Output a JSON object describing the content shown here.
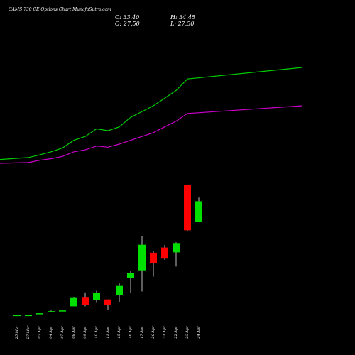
{
  "header": {
    "title": "CAMS 730  CE Options  Chart MunafaSutra.com",
    "close": "C: 33.40",
    "open": "O: 27.50",
    "high": "H: 34.45",
    "low": "L: 27.50"
  },
  "chart_data": {
    "type": "candlestick",
    "title": "CAMS 730  CE Options  Chart MunafaSutra.com",
    "x_tick_labels": [
      "25 Mar",
      "27 Mar",
      "02 Apr",
      "04 Apr",
      "07 Apr",
      "08 Apr",
      "09 Apr",
      "10 Apr",
      "11 Apr",
      "15 Apr",
      "16 Apr",
      "17 Apr",
      "20 Apr",
      "21 Apr",
      "22 Apr",
      "23 Apr",
      "24 Apr"
    ],
    "candles": [
      {
        "date": "25 Mar",
        "open": 0.5,
        "high": 0.5,
        "low": 0.5,
        "close": 0.5,
        "color": "green"
      },
      {
        "date": "27 Mar",
        "open": 0.5,
        "high": 0.5,
        "low": 0.5,
        "close": 0.5,
        "color": "green"
      },
      {
        "date": "02 Apr",
        "open": 0.8,
        "high": 1.0,
        "low": 0.8,
        "close": 1.0,
        "color": "green"
      },
      {
        "date": "04 Apr",
        "open": 1.3,
        "high": 1.8,
        "low": 1.3,
        "close": 1.6,
        "color": "green"
      },
      {
        "date": "07 Apr",
        "open": 1.6,
        "high": 1.8,
        "low": 1.6,
        "close": 1.8,
        "color": "green"
      },
      {
        "date": "08 Apr",
        "open": 3.0,
        "high": 5.7,
        "low": 3.0,
        "close": 5.4,
        "color": "green"
      },
      {
        "date": "09 Apr",
        "open": 5.5,
        "high": 7.0,
        "low": 3.0,
        "close": 3.4,
        "color": "red"
      },
      {
        "date": "10 Apr",
        "open": 4.8,
        "high": 7.5,
        "low": 4.0,
        "close": 6.8,
        "color": "green"
      },
      {
        "date": "11 Apr",
        "open": 5.0,
        "high": 5.0,
        "low": 2.0,
        "close": 3.3,
        "color": "red"
      },
      {
        "date": "15 Apr",
        "open": 6.2,
        "high": 9.8,
        "low": 4.3,
        "close": 8.9,
        "color": "green"
      },
      {
        "date": "16 Apr",
        "open": 11.3,
        "high": 13.2,
        "low": 6.8,
        "close": 12.6,
        "color": "green"
      },
      {
        "date": "17 Apr",
        "open": 13.4,
        "high": 23.3,
        "low": 7.3,
        "close": 20.8,
        "color": "green"
      },
      {
        "date": "20 Apr",
        "open": 18.5,
        "high": 19.0,
        "low": 11.6,
        "close": 15.5,
        "color": "red"
      },
      {
        "date": "21 Apr",
        "open": 20.0,
        "high": 20.7,
        "low": 16.5,
        "close": 16.8,
        "color": "red"
      },
      {
        "date": "22 Apr",
        "open": 18.6,
        "high": 21.5,
        "low": 14.5,
        "close": 21.3,
        "color": "green"
      },
      {
        "date": "23 Apr",
        "open": 38.0,
        "high": 38.0,
        "low": 24.8,
        "close": 25.0,
        "color": "red"
      },
      {
        "date": "24 Apr",
        "open": 27.5,
        "high": 34.45,
        "low": 27.5,
        "close": 33.4,
        "color": "green"
      }
    ],
    "series": [
      {
        "color": "#00cc00",
        "values": [
          0.5,
          0.55,
          0.62,
          0.7,
          0.8,
          1.0,
          1.1,
          1.3,
          1.25,
          1.35,
          1.6,
          1.75,
          1.9,
          2.1,
          2.3,
          2.6,
          2.9
        ]
      },
      {
        "color": "#cc00cc",
        "values": [
          0.4,
          0.42,
          0.48,
          0.52,
          0.58,
          0.7,
          0.75,
          0.85,
          0.82,
          0.9,
          1.0,
          1.1,
          1.2,
          1.35,
          1.5,
          1.7,
          1.9
        ]
      }
    ],
    "grid": false,
    "legend": "none"
  },
  "colors": {
    "background": "#000000",
    "up": "#00e000",
    "down": "#ff0000",
    "wick": "#bbbbbb",
    "text": "#ffffff"
  }
}
